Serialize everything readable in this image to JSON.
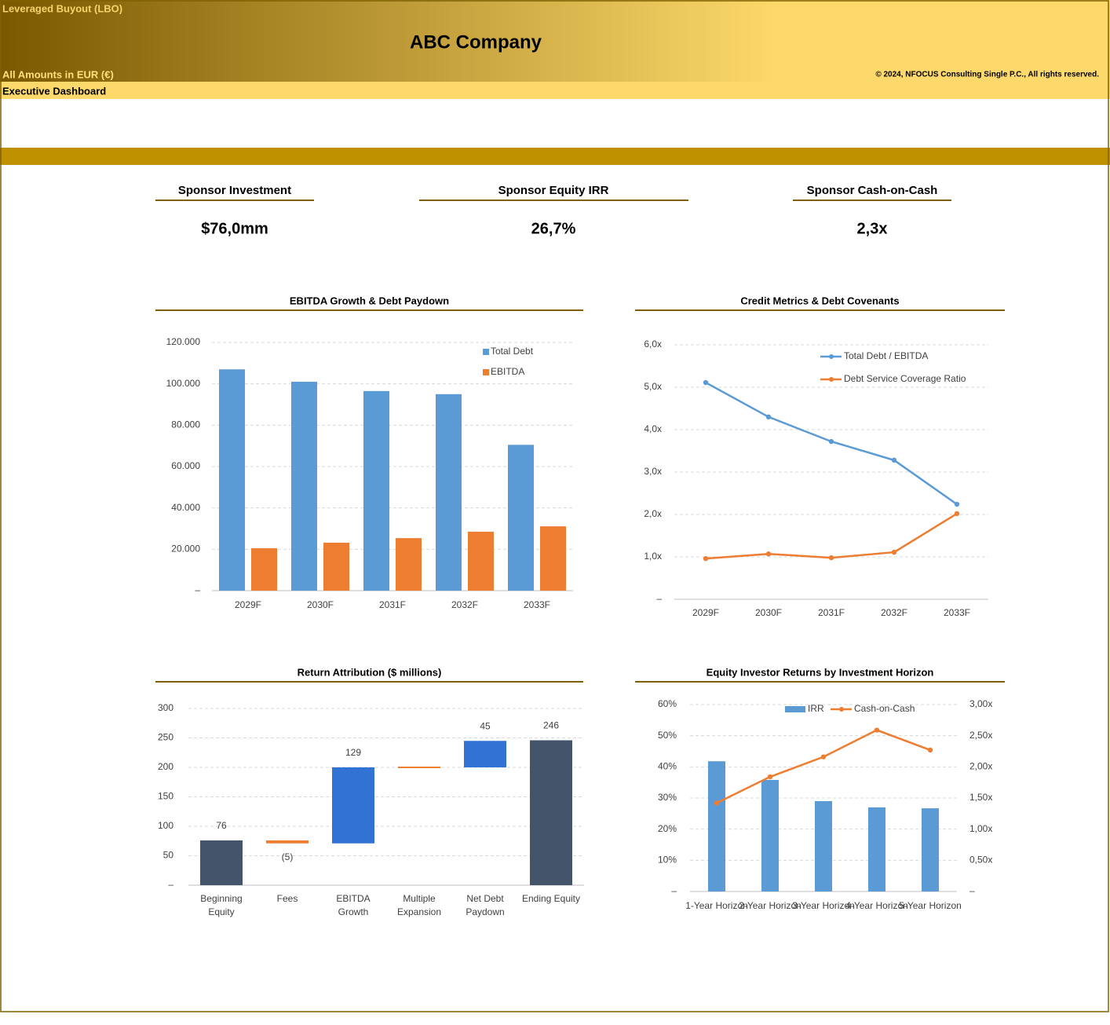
{
  "header": {
    "model": "Leveraged Buyout (LBO)",
    "company": "ABC Company",
    "currency": "All Amounts in  EUR (€)",
    "copyright": "© 2024, NFOCUS Consulting Single P.C., All rights reserved.",
    "sheet": "Executive Dashboard"
  },
  "kpis": [
    {
      "label": "Sponsor Investment",
      "value": "$76,0mm"
    },
    {
      "label": "Sponsor Equity IRR",
      "value": "26,7%"
    },
    {
      "label": "Sponsor Cash-on-Cash",
      "value": "2,3x"
    }
  ],
  "chart_data": [
    {
      "type": "bar",
      "title": "EBITDA Growth & Debt Paydown",
      "categories": [
        "2029F",
        "2030F",
        "2031F",
        "2032F",
        "2033F"
      ],
      "series": [
        {
          "name": "Total Debt",
          "color": "#5b9bd5",
          "values": [
            107000,
            101000,
            96500,
            95000,
            70500
          ]
        },
        {
          "name": "EBITDA",
          "color": "#ed7d31",
          "values": [
            20500,
            23200,
            25400,
            28500,
            31100
          ]
        }
      ],
      "ylim": [
        0,
        120000
      ],
      "yticks": [
        {
          "value": 0,
          "label": "–"
        },
        {
          "value": 20000,
          "label": "20.000"
        },
        {
          "value": 40000,
          "label": "40.000"
        },
        {
          "value": 60000,
          "label": "60.000"
        },
        {
          "value": 80000,
          "label": "80.000"
        },
        {
          "value": 100000,
          "label": "100.000"
        },
        {
          "value": 120000,
          "label": "120.000"
        }
      ],
      "grid": true,
      "legend": "top-right"
    },
    {
      "type": "line",
      "title": "Credit Metrics & Debt Covenants",
      "categories": [
        "2029F",
        "2030F",
        "2031F",
        "2032F",
        "2033F"
      ],
      "series": [
        {
          "name": "Total Debt / EBITDA",
          "color": "#5b9bd5",
          "values": [
            5.11,
            4.3,
            3.72,
            3.28,
            2.24
          ]
        },
        {
          "name": "Debt Service Coverage Ratio",
          "color": "#ed7d31",
          "values": [
            0.96,
            1.07,
            0.98,
            1.11,
            2.02
          ]
        }
      ],
      "ylim": [
        0,
        6
      ],
      "yticks": [
        {
          "value": 0,
          "label": "–"
        },
        {
          "value": 1,
          "label": "1,0x"
        },
        {
          "value": 2,
          "label": "2,0x"
        },
        {
          "value": 3,
          "label": "3,0x"
        },
        {
          "value": 4,
          "label": "4,0x"
        },
        {
          "value": 5,
          "label": "5,0x"
        },
        {
          "value": 6,
          "label": "6,0x"
        }
      ],
      "grid": true,
      "legend": "top-right"
    },
    {
      "type": "waterfall",
      "title": "Return Attribution ($ millions)",
      "categories": [
        "Beginning Equity",
        "Fees",
        "EBITDA Growth",
        "Multiple Expansion",
        "Net Debt Paydown",
        "Ending Equity"
      ],
      "values": [
        76,
        -5,
        129,
        0,
        45,
        246
      ],
      "value_labels": [
        "76",
        "(5)",
        "129",
        null,
        "45",
        "246"
      ],
      "total_color": "#44546a",
      "increase_color": "#3172d4",
      "decrease_color": "#ed7d31",
      "ylim": [
        0,
        300
      ],
      "yticks": [
        {
          "value": 0,
          "label": "–"
        },
        50,
        100,
        150,
        200,
        250,
        300
      ],
      "grid": true
    },
    {
      "type": "combo",
      "title": "Equity Investor Returns by Investment Horizon",
      "categories": [
        "1-Year Horizon",
        "2-Year Horizon",
        "3-Year Horizon",
        "4-Year Horizon",
        "5-Year Horizon"
      ],
      "series": [
        {
          "name": "IRR",
          "type": "bar",
          "color": "#5b9bd5",
          "values": [
            41.8,
            35.8,
            29.0,
            27.0,
            26.7
          ]
        },
        {
          "name": "Cash-on-Cash",
          "type": "line",
          "axis": "y2",
          "color": "#ed7d31",
          "values": [
            1.42,
            1.84,
            2.16,
            2.59,
            2.27
          ]
        }
      ],
      "ylim": [
        0,
        60
      ],
      "yticks": [
        {
          "value": 0,
          "label": "–"
        },
        {
          "value": 10,
          "label": "10%"
        },
        {
          "value": 20,
          "label": "20%"
        },
        {
          "value": 30,
          "label": "30%"
        },
        {
          "value": 40,
          "label": "40%"
        },
        {
          "value": 50,
          "label": "50%"
        },
        {
          "value": 60,
          "label": "60%"
        }
      ],
      "y2lim": [
        0,
        3
      ],
      "y2ticks": [
        {
          "value": 0,
          "label": "–"
        },
        {
          "value": 0.5,
          "label": "0,50x"
        },
        {
          "value": 1,
          "label": "1,00x"
        },
        {
          "value": 1.5,
          "label": "1,50x"
        },
        {
          "value": 2,
          "label": "2,00x"
        },
        {
          "value": 2.5,
          "label": "2,50x"
        },
        {
          "value": 3,
          "label": "3,00x"
        }
      ],
      "grid": true,
      "legend": "top-center"
    }
  ]
}
